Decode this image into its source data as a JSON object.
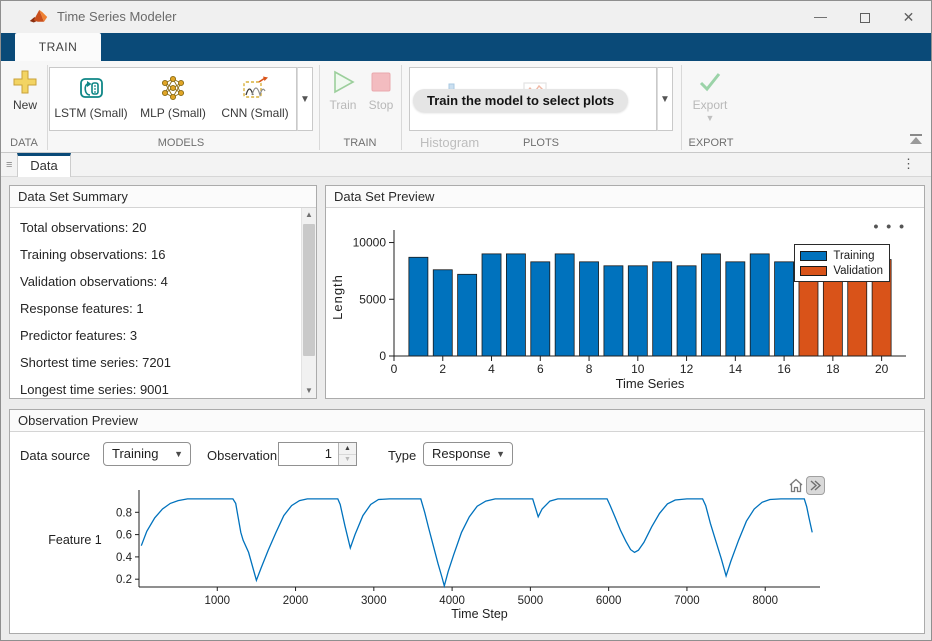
{
  "window": {
    "title": "Time Series Modeler"
  },
  "icons": {
    "window_minimize": "—",
    "window_close": "✕",
    "overflow": "⋮",
    "more_options": "• • •",
    "dropdown_caret": "▼",
    "small_caret": "▼",
    "spinner_up": "▲",
    "spinner_down": "▼",
    "scroll_up": "▲",
    "scroll_down": "▼",
    "grip": "≡"
  },
  "ribbon": {
    "tab": "TRAIN",
    "sections": {
      "data": {
        "label": "DATA",
        "new_button": "New"
      },
      "models": {
        "label": "MODELS",
        "items": [
          {
            "label": "LSTM (Small)"
          },
          {
            "label": "MLP (Small)"
          },
          {
            "label": "CNN (Small)"
          }
        ]
      },
      "train": {
        "label": "TRAIN",
        "train_button": "Train",
        "stop_button": "Stop"
      },
      "plots": {
        "label": "PLOTS",
        "histogram_label": "Histogram",
        "tooltip": "Train the model to select plots"
      },
      "export": {
        "label": "EXPORT",
        "export_button": "Export"
      }
    }
  },
  "doc_tabs": {
    "active": "Data"
  },
  "summary": {
    "title": "Data Set Summary",
    "items": [
      "Total observations: 20",
      "Training observations: 16",
      "Validation observations: 4",
      "Response features: 1",
      "Predictor features: 3",
      "Shortest time series: 7201",
      "Longest time series: 9001"
    ]
  },
  "preview": {
    "title": "Data Set Preview"
  },
  "observation": {
    "title": "Observation Preview",
    "data_source_label": "Data source",
    "data_source_value": "Training",
    "observation_label": "Observation",
    "observation_value": "1",
    "type_label": "Type",
    "type_value": "Response"
  },
  "colors": {
    "accent_navy": "#0a4a78",
    "training_blue": "#0072BD",
    "validation_orange": "#D95319",
    "axis": "#1f1f1f"
  },
  "chart_data": [
    {
      "type": "bar",
      "title": "",
      "xlabel": "Time Series",
      "ylabel": "Length",
      "x": [
        1,
        2,
        3,
        4,
        5,
        6,
        7,
        8,
        9,
        10,
        11,
        12,
        13,
        14,
        15,
        16,
        17,
        18,
        19,
        20
      ],
      "values": [
        8700,
        7600,
        7200,
        9000,
        9000,
        8300,
        9000,
        8300,
        7950,
        7950,
        8300,
        7950,
        9000,
        8300,
        9000,
        8300,
        7950,
        8500,
        8400,
        8500
      ],
      "training_count": 16,
      "xlim": [
        0,
        21
      ],
      "ylim": [
        0,
        10400
      ],
      "xticks": [
        0,
        2,
        4,
        6,
        8,
        10,
        12,
        14,
        16,
        18,
        20
      ],
      "yticks": [
        0,
        5000,
        10000
      ],
      "grid": false,
      "legend_position": "top-right",
      "legend": [
        {
          "label": "Training",
          "color": "#0072BD"
        },
        {
          "label": "Validation",
          "color": "#D95319"
        }
      ]
    },
    {
      "type": "line",
      "title": "",
      "xlabel": "Time Step",
      "ylabel": "Feature 1",
      "color": "#0072BD",
      "xlim": [
        0,
        8700
      ],
      "ylim": [
        0.13,
        1.0
      ],
      "xticks": [
        1000,
        2000,
        3000,
        4000,
        5000,
        6000,
        7000,
        8000
      ],
      "yticks": [
        0.2,
        0.4,
        0.6,
        0.8
      ],
      "grid": false,
      "x": [
        30,
        100,
        200,
        300,
        400,
        500,
        620,
        900,
        1200,
        1235,
        1300,
        1330,
        1400,
        1500,
        1560,
        1650,
        1750,
        1850,
        1950,
        2050,
        2150,
        2300,
        2540,
        2570,
        2630,
        2700,
        2760,
        2860,
        2960,
        3060,
        3200,
        3600,
        3650,
        3700,
        3760,
        3820,
        3870,
        3900,
        3950,
        4020,
        4120,
        4220,
        4320,
        4430,
        4550,
        4700,
        5030,
        5060,
        5100,
        5150,
        5250,
        5350,
        5600,
        5980,
        6020,
        6080,
        6150,
        6220,
        6280,
        6330,
        6380,
        6450,
        6550,
        6650,
        6750,
        6850,
        7000,
        7200,
        7240,
        7300,
        7370,
        7440,
        7500,
        7560,
        7660,
        7760,
        7860,
        7960,
        8060,
        8200,
        8500,
        8530,
        8560,
        8600
      ],
      "y": [
        0.5,
        0.63,
        0.75,
        0.83,
        0.88,
        0.905,
        0.92,
        0.92,
        0.92,
        0.88,
        0.62,
        0.55,
        0.44,
        0.19,
        0.3,
        0.46,
        0.62,
        0.77,
        0.86,
        0.905,
        0.92,
        0.92,
        0.92,
        0.87,
        0.68,
        0.48,
        0.6,
        0.77,
        0.87,
        0.915,
        0.92,
        0.92,
        0.8,
        0.66,
        0.5,
        0.34,
        0.22,
        0.14,
        0.27,
        0.42,
        0.62,
        0.76,
        0.855,
        0.9,
        0.92,
        0.92,
        0.92,
        0.85,
        0.76,
        0.83,
        0.9,
        0.92,
        0.92,
        0.92,
        0.86,
        0.76,
        0.64,
        0.54,
        0.465,
        0.44,
        0.46,
        0.53,
        0.67,
        0.79,
        0.875,
        0.91,
        0.92,
        0.92,
        0.86,
        0.7,
        0.54,
        0.38,
        0.23,
        0.36,
        0.55,
        0.72,
        0.83,
        0.89,
        0.915,
        0.92,
        0.92,
        0.85,
        0.75,
        0.62
      ]
    }
  ]
}
